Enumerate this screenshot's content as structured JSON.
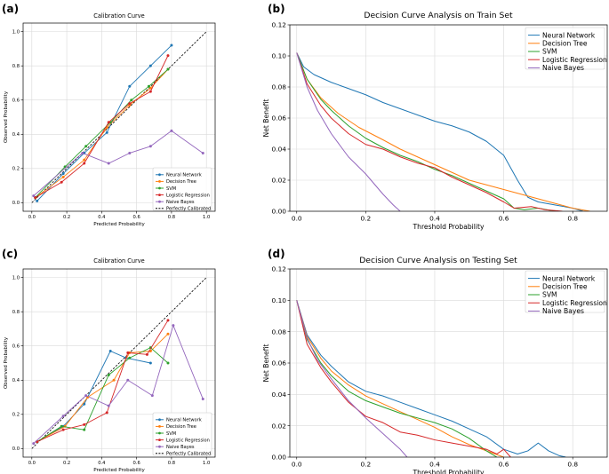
{
  "colors": {
    "nn": "#1f77b4",
    "dt": "#ff7f0e",
    "svm": "#2ca02c",
    "lr": "#d62728",
    "nb": "#9467bd",
    "ref": "#000000",
    "grid": "#d9d9d9"
  },
  "chart_data": [
    {
      "id": "a",
      "panel_label": "(a)",
      "type": "line",
      "title": "Calibration Curve",
      "xlabel": "Predicted Probability",
      "ylabel": "Observed Probability",
      "xlim": [
        -0.05,
        1.05
      ],
      "ylim": [
        -0.05,
        1.05
      ],
      "xticks": [
        0.0,
        0.2,
        0.4,
        0.6,
        0.8,
        1.0
      ],
      "xtick_labels": [
        "0.0",
        "0.2",
        "0.4",
        "0.6",
        "0.8",
        "1.0"
      ],
      "yticks": [
        0.0,
        0.2,
        0.4,
        0.6,
        0.8,
        1.0
      ],
      "ytick_labels": [
        "0.0",
        "0.2",
        "0.4",
        "0.6",
        "0.8",
        "1.0"
      ],
      "grid": true,
      "legend_position": "bottom-right",
      "reference": {
        "name": "Perfectly Calibrated",
        "x": [
          0,
          1
        ],
        "y": [
          0,
          1
        ]
      },
      "series": [
        {
          "name": "Neural Network",
          "color_key": "nn",
          "markers": true,
          "x": [
            0.03,
            0.18,
            0.3,
            0.43,
            0.56,
            0.68,
            0.8
          ],
          "y": [
            0.01,
            0.17,
            0.29,
            0.41,
            0.68,
            0.8,
            0.92
          ]
        },
        {
          "name": "Decision Tree",
          "color_key": "dt",
          "markers": true,
          "x": [
            0.02,
            0.18,
            0.3,
            0.43,
            0.56,
            0.68,
            0.78
          ],
          "y": [
            0.03,
            0.15,
            0.25,
            0.44,
            0.57,
            0.67,
            0.78
          ]
        },
        {
          "name": "SVM",
          "color_key": "svm",
          "markers": true,
          "x": [
            0.02,
            0.19,
            0.31,
            0.45,
            0.57,
            0.67,
            0.78
          ],
          "y": [
            0.03,
            0.21,
            0.33,
            0.47,
            0.6,
            0.68,
            0.78
          ]
        },
        {
          "name": "Logistic Regression",
          "color_key": "lr",
          "markers": true,
          "x": [
            0.02,
            0.17,
            0.3,
            0.44,
            0.56,
            0.68,
            0.78
          ],
          "y": [
            0.03,
            0.12,
            0.23,
            0.47,
            0.58,
            0.65,
            0.86
          ]
        },
        {
          "name": "Naive Bayes",
          "color_key": "nb",
          "markers": true,
          "x": [
            0.01,
            0.29,
            0.44,
            0.56,
            0.68,
            0.8,
            0.98
          ],
          "y": [
            0.04,
            0.29,
            0.23,
            0.29,
            0.33,
            0.42,
            0.29
          ]
        }
      ]
    },
    {
      "id": "b",
      "panel_label": "(b)",
      "type": "line",
      "title": "Decision Curve Analysis on Train Set",
      "xlabel": "Threshold Probability",
      "ylabel": "Net Benefit",
      "xlim": [
        -0.02,
        0.9
      ],
      "ylim": [
        0.0,
        0.12
      ],
      "xticks": [
        0.0,
        0.2,
        0.4,
        0.6,
        0.8
      ],
      "xtick_labels": [
        "0.0",
        "0.2",
        "0.4",
        "0.6",
        "0.8"
      ],
      "yticks": [
        0.0,
        0.02,
        0.04,
        0.06,
        0.08,
        0.1,
        0.12
      ],
      "ytick_labels": [
        "0.00",
        "0.02",
        "0.04",
        "0.06",
        "0.08",
        "0.10",
        "0.12"
      ],
      "grid": true,
      "legend_position": "top-right",
      "series": [
        {
          "name": "Neural Network",
          "color_key": "nn",
          "x": [
            0.0,
            0.02,
            0.05,
            0.1,
            0.15,
            0.2,
            0.25,
            0.3,
            0.35,
            0.4,
            0.45,
            0.5,
            0.55,
            0.6,
            0.64,
            0.67,
            0.7,
            0.75,
            0.8,
            0.83
          ],
          "y": [
            0.102,
            0.093,
            0.088,
            0.083,
            0.079,
            0.075,
            0.07,
            0.066,
            0.062,
            0.058,
            0.055,
            0.051,
            0.045,
            0.036,
            0.02,
            0.009,
            0.006,
            0.004,
            0.002,
            0.0
          ]
        },
        {
          "name": "Decision Tree",
          "color_key": "dt",
          "x": [
            0.0,
            0.03,
            0.07,
            0.12,
            0.18,
            0.25,
            0.3,
            0.35,
            0.4,
            0.45,
            0.5,
            0.55,
            0.6,
            0.65,
            0.7,
            0.75,
            0.8,
            0.85
          ],
          "y": [
            0.102,
            0.085,
            0.073,
            0.063,
            0.054,
            0.046,
            0.04,
            0.035,
            0.03,
            0.025,
            0.02,
            0.017,
            0.014,
            0.011,
            0.008,
            0.005,
            0.002,
            0.0
          ]
        },
        {
          "name": "SVM",
          "color_key": "svm",
          "x": [
            0.0,
            0.03,
            0.07,
            0.1,
            0.15,
            0.2,
            0.25,
            0.3,
            0.35,
            0.4,
            0.45,
            0.5,
            0.55,
            0.6,
            0.63,
            0.66,
            0.7,
            0.75
          ],
          "y": [
            0.102,
            0.085,
            0.072,
            0.065,
            0.055,
            0.047,
            0.041,
            0.036,
            0.032,
            0.027,
            0.023,
            0.018,
            0.013,
            0.008,
            0.002,
            0.001,
            0.002,
            0.0
          ]
        },
        {
          "name": "Logistic Regression",
          "color_key": "lr",
          "x": [
            0.0,
            0.03,
            0.07,
            0.1,
            0.15,
            0.2,
            0.25,
            0.3,
            0.35,
            0.4,
            0.45,
            0.5,
            0.55,
            0.6,
            0.63,
            0.68,
            0.72,
            0.77
          ],
          "y": [
            0.102,
            0.082,
            0.068,
            0.06,
            0.05,
            0.043,
            0.04,
            0.035,
            0.031,
            0.028,
            0.022,
            0.017,
            0.012,
            0.006,
            0.002,
            0.003,
            0.001,
            0.0
          ]
        },
        {
          "name": "Naive Bayes",
          "color_key": "nb",
          "x": [
            0.0,
            0.03,
            0.06,
            0.1,
            0.15,
            0.2,
            0.25,
            0.28,
            0.3
          ],
          "y": [
            0.102,
            0.08,
            0.065,
            0.05,
            0.035,
            0.024,
            0.011,
            0.004,
            0.0
          ]
        }
      ]
    },
    {
      "id": "c",
      "panel_label": "(c)",
      "type": "line",
      "title": "Calibration Curve",
      "xlabel": "Predicted Probability",
      "ylabel": "Observed Probability",
      "xlim": [
        -0.05,
        1.05
      ],
      "ylim": [
        -0.05,
        1.05
      ],
      "xticks": [
        0.0,
        0.2,
        0.4,
        0.6,
        0.8,
        1.0
      ],
      "xtick_labels": [
        "0.0",
        "0.2",
        "0.4",
        "0.6",
        "0.8",
        "1.0"
      ],
      "yticks": [
        0.0,
        0.2,
        0.4,
        0.6,
        0.8,
        1.0
      ],
      "ytick_labels": [
        "0.0",
        "0.2",
        "0.4",
        "0.6",
        "0.8",
        "1.0"
      ],
      "grid": true,
      "legend_position": "bottom-right",
      "reference": {
        "name": "Perfectly Calibrated",
        "x": [
          0,
          1
        ],
        "y": [
          0,
          1
        ]
      },
      "series": [
        {
          "name": "Neural Network",
          "color_key": "nn",
          "markers": true,
          "x": [
            0.03,
            0.18,
            0.3,
            0.45,
            0.54,
            0.68
          ],
          "y": [
            0.04,
            0.13,
            0.26,
            0.57,
            0.53,
            0.5
          ]
        },
        {
          "name": "Decision Tree",
          "color_key": "dt",
          "markers": true,
          "x": [
            0.03,
            0.19,
            0.32,
            0.47,
            0.56,
            0.68,
            0.78
          ],
          "y": [
            0.04,
            0.13,
            0.3,
            0.4,
            0.56,
            0.57,
            0.67
          ]
        },
        {
          "name": "SVM",
          "color_key": "svm",
          "markers": true,
          "x": [
            0.03,
            0.17,
            0.3,
            0.44,
            0.56,
            0.68,
            0.78
          ],
          "y": [
            0.04,
            0.13,
            0.11,
            0.43,
            0.53,
            0.59,
            0.5
          ]
        },
        {
          "name": "Logistic Regression",
          "color_key": "lr",
          "markers": true,
          "x": [
            0.03,
            0.18,
            0.3,
            0.43,
            0.55,
            0.66,
            0.78
          ],
          "y": [
            0.04,
            0.11,
            0.14,
            0.21,
            0.56,
            0.55,
            0.75
          ]
        },
        {
          "name": "Naive Bayes",
          "color_key": "nb",
          "markers": true,
          "x": [
            0.01,
            0.18,
            0.31,
            0.44,
            0.55,
            0.69,
            0.81,
            0.98
          ],
          "y": [
            0.03,
            0.19,
            0.31,
            0.25,
            0.4,
            0.31,
            0.72,
            0.29
          ]
        }
      ]
    },
    {
      "id": "d",
      "panel_label": "(d)",
      "type": "line",
      "title": "Decision Curve Analysis on Testing Set",
      "xlabel": "Threshold Probability",
      "ylabel": "Net Benefit",
      "xlim": [
        -0.02,
        0.9
      ],
      "ylim": [
        0.0,
        0.12
      ],
      "xticks": [
        0.0,
        0.2,
        0.4,
        0.6,
        0.8
      ],
      "xtick_labels": [
        "0.0",
        "0.2",
        "0.4",
        "0.6",
        "0.8"
      ],
      "yticks": [
        0.0,
        0.02,
        0.04,
        0.06,
        0.08,
        0.1,
        0.12
      ],
      "ytick_labels": [
        "0.00",
        "0.02",
        "0.04",
        "0.06",
        "0.08",
        "0.10",
        "0.12"
      ],
      "grid": true,
      "legend_position": "top-right",
      "series": [
        {
          "name": "Neural Network",
          "color_key": "nn",
          "x": [
            0.0,
            0.03,
            0.07,
            0.1,
            0.15,
            0.2,
            0.25,
            0.3,
            0.35,
            0.4,
            0.45,
            0.5,
            0.55,
            0.6,
            0.64,
            0.67,
            0.7,
            0.73,
            0.76,
            0.78
          ],
          "y": [
            0.1,
            0.078,
            0.065,
            0.058,
            0.048,
            0.042,
            0.039,
            0.035,
            0.031,
            0.027,
            0.023,
            0.018,
            0.013,
            0.005,
            0.002,
            0.004,
            0.009,
            0.004,
            0.001,
            0.0
          ]
        },
        {
          "name": "Decision Tree",
          "color_key": "dt",
          "x": [
            0.0,
            0.03,
            0.07,
            0.1,
            0.15,
            0.2,
            0.25,
            0.3,
            0.35,
            0.4,
            0.45,
            0.5,
            0.55,
            0.6
          ],
          "y": [
            0.1,
            0.077,
            0.063,
            0.055,
            0.046,
            0.039,
            0.034,
            0.029,
            0.024,
            0.019,
            0.013,
            0.008,
            0.004,
            0.0
          ]
        },
        {
          "name": "SVM",
          "color_key": "svm",
          "x": [
            0.0,
            0.03,
            0.07,
            0.1,
            0.15,
            0.2,
            0.25,
            0.3,
            0.35,
            0.4,
            0.45,
            0.5,
            0.55,
            0.58
          ],
          "y": [
            0.1,
            0.075,
            0.06,
            0.052,
            0.042,
            0.036,
            0.032,
            0.028,
            0.025,
            0.022,
            0.018,
            0.012,
            0.004,
            0.0
          ]
        },
        {
          "name": "Logistic Regression",
          "color_key": "lr",
          "x": [
            0.0,
            0.03,
            0.07,
            0.1,
            0.15,
            0.2,
            0.25,
            0.3,
            0.35,
            0.4,
            0.45,
            0.5,
            0.55,
            0.58,
            0.6,
            0.62
          ],
          "y": [
            0.1,
            0.072,
            0.057,
            0.048,
            0.035,
            0.026,
            0.022,
            0.016,
            0.014,
            0.011,
            0.009,
            0.007,
            0.005,
            0.002,
            0.005,
            0.0
          ]
        },
        {
          "name": "Naive Bayes",
          "color_key": "nb",
          "x": [
            0.0,
            0.03,
            0.06,
            0.1,
            0.15,
            0.2,
            0.25,
            0.3,
            0.32
          ],
          "y": [
            0.1,
            0.076,
            0.062,
            0.05,
            0.036,
            0.025,
            0.015,
            0.005,
            0.0
          ]
        }
      ]
    }
  ]
}
